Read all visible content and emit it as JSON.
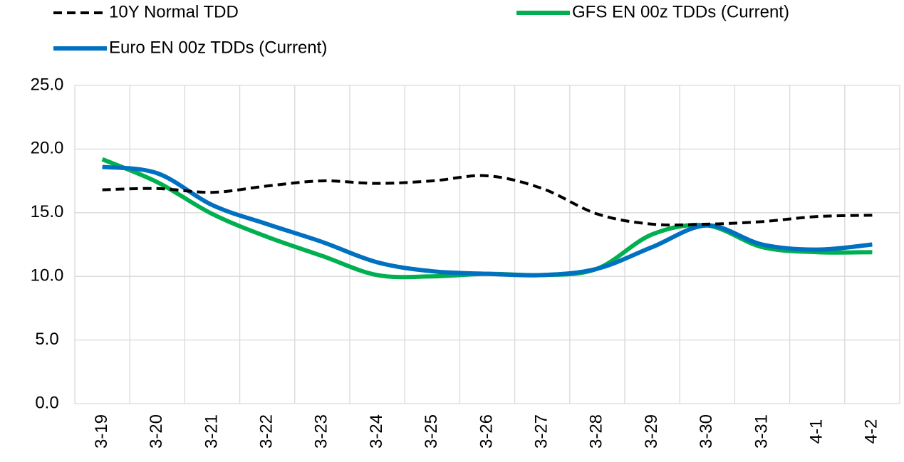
{
  "chart_data": {
    "type": "line",
    "categories": [
      "3-19",
      "3-20",
      "3-21",
      "3-22",
      "3-23",
      "3-24",
      "3-25",
      "3-26",
      "3-27",
      "3-28",
      "3-29",
      "3-30",
      "3-31",
      "4-1",
      "4-2"
    ],
    "series": [
      {
        "name": "10Y Normal TDD",
        "color": "#000000",
        "dashed": true,
        "values": [
          16.8,
          16.9,
          16.6,
          17.1,
          17.5,
          17.3,
          17.5,
          17.9,
          16.9,
          14.9,
          14.1,
          14.1,
          14.3,
          14.7,
          14.8
        ]
      },
      {
        "name": "GFS EN 00z TDDs (Current)",
        "color": "#00b050",
        "dashed": false,
        "values": [
          19.2,
          17.4,
          14.9,
          13.1,
          11.6,
          10.1,
          10.0,
          10.2,
          10.1,
          10.6,
          13.3,
          14.0,
          12.3,
          11.9,
          11.9
        ]
      },
      {
        "name": "Euro EN 00z TDDs (Current)",
        "color": "#0070c0",
        "dashed": false,
        "values": [
          18.6,
          18.1,
          15.6,
          14.1,
          12.7,
          11.1,
          10.4,
          10.2,
          10.1,
          10.6,
          12.3,
          14.0,
          12.5,
          12.1,
          12.5
        ]
      }
    ],
    "ylim": [
      0,
      25
    ],
    "yticks": [
      {
        "value": 0,
        "label": "0.0"
      },
      {
        "value": 5,
        "label": "5.0"
      },
      {
        "value": 10,
        "label": "10.0"
      },
      {
        "value": 15,
        "label": "15.0"
      },
      {
        "value": 20,
        "label": "20.0"
      },
      {
        "value": 25,
        "label": "25.0"
      }
    ],
    "grid": true
  }
}
